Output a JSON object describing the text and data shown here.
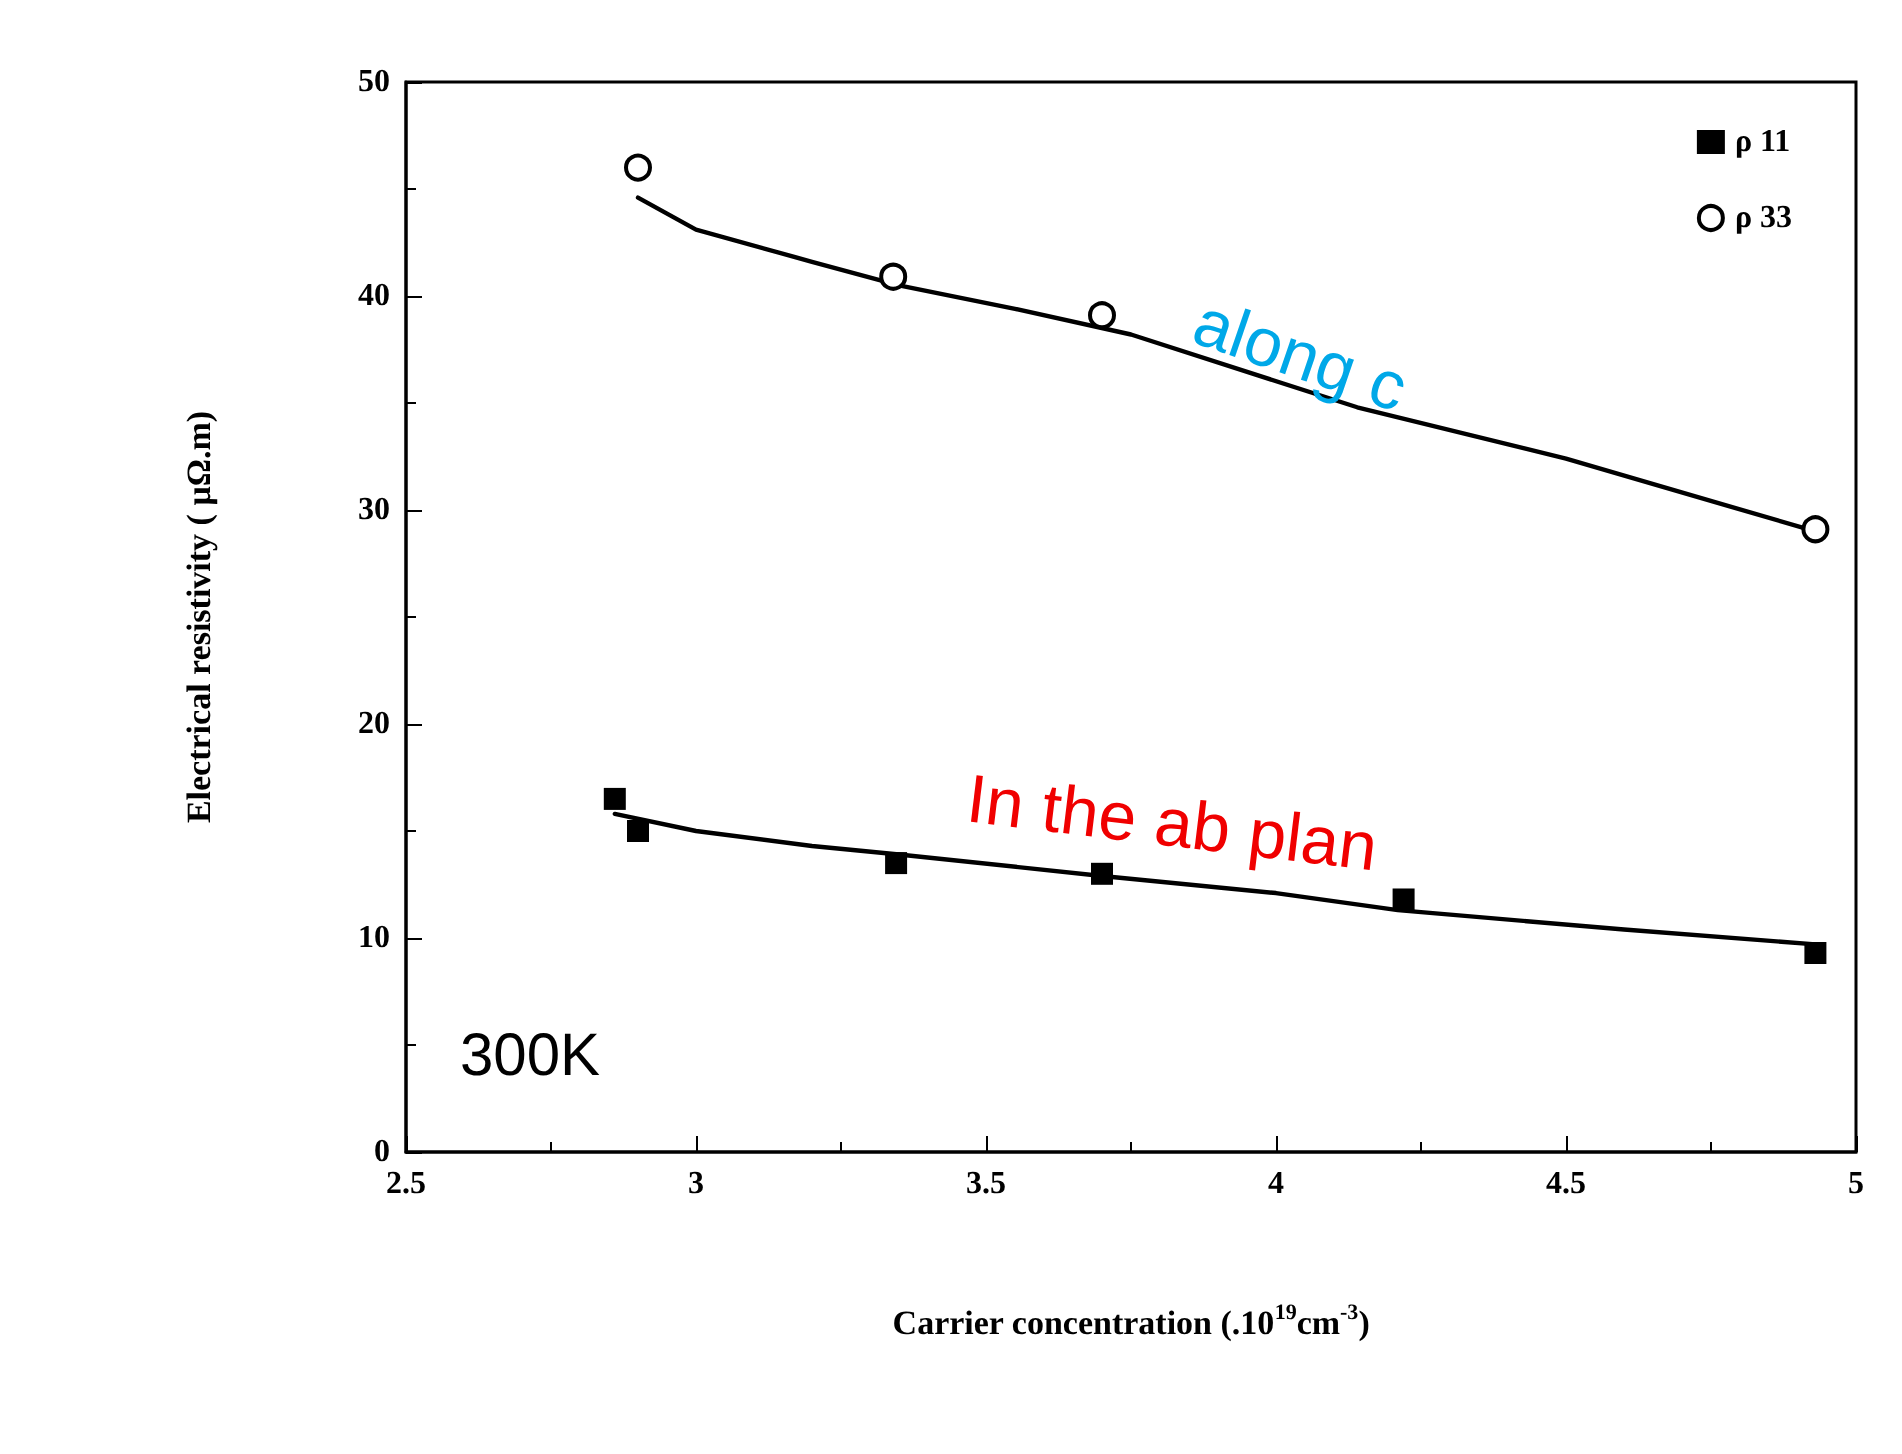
{
  "chart_data": {
    "type": "scatter",
    "xlabel": "Carrier concentration (.10$^{19}$cm$^{-3}$)",
    "ylabel": "Electrical resistivity ( μΩ.m)",
    "xlim": [
      2.5,
      5
    ],
    "xticks": [
      2.5,
      3,
      3.5,
      4,
      4.5,
      5
    ],
    "ylim": [
      0,
      50
    ],
    "yticks": [
      0,
      10,
      20,
      30,
      40,
      50
    ],
    "grid": false,
    "legend": "top right",
    "series": [
      {
        "name": "ρ 11",
        "marker": "square",
        "color": "#000000",
        "x": [
          2.86,
          2.9,
          3.345,
          3.7,
          4.22,
          4.93
        ],
        "values": [
          16.5,
          15.0,
          13.5,
          13.0,
          11.8,
          9.3
        ]
      },
      {
        "name": "ρ 33",
        "marker": "circle",
        "color": "#000000",
        "x": [
          2.9,
          3.34,
          3.7,
          4.93
        ],
        "values": [
          46.0,
          40.9,
          39.1,
          29.1
        ]
      },
      {
        "type": "line",
        "marker": "none",
        "color": "#000000",
        "x": [
          2.9,
          3.0,
          3.2,
          3.35,
          3.55,
          3.75,
          4.14,
          4.5,
          4.93
        ],
        "values": [
          44.6,
          43.1,
          41.6,
          40.5,
          39.4,
          38.2,
          34.8,
          32.4,
          29.0
        ]
      },
      {
        "type": "line",
        "marker": "none",
        "color": "#000000",
        "x": [
          2.86,
          3.0,
          3.2,
          3.35,
          3.7,
          4.0,
          4.21,
          4.6,
          4.93
        ],
        "values": [
          15.8,
          15.0,
          14.3,
          13.9,
          12.9,
          12.1,
          11.3,
          10.4,
          9.7
        ]
      }
    ],
    "annotations": [
      "along c",
      "In the ab plan",
      "300K"
    ]
  }
}
